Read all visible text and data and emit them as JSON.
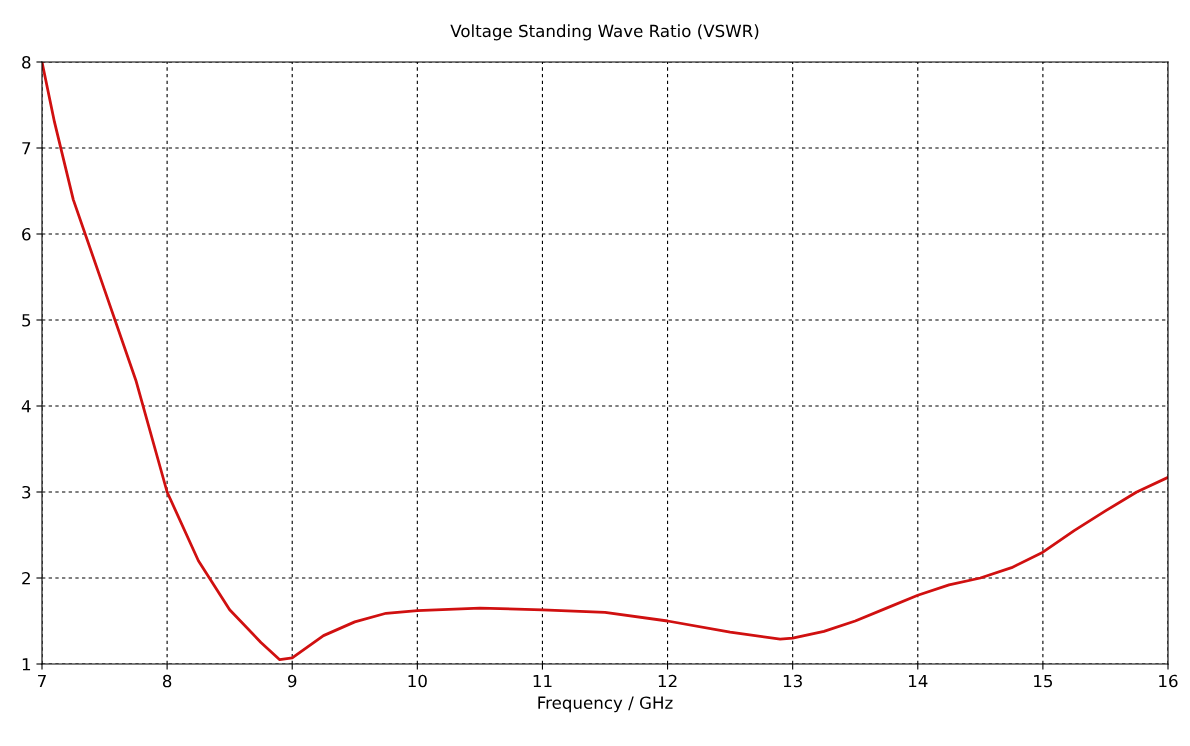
{
  "chart_data": {
    "type": "line",
    "title": "Voltage Standing Wave Ratio (VSWR)",
    "xlabel": "Frequency / GHz",
    "x": [
      7,
      7.1,
      7.25,
      7.5,
      7.75,
      8,
      8.25,
      8.5,
      8.75,
      8.9,
      9,
      9.25,
      9.5,
      9.75,
      10,
      10.5,
      11,
      11.5,
      12,
      12.5,
      12.9,
      13,
      13.25,
      13.5,
      13.75,
      14,
      14.25,
      14.5,
      14.75,
      15,
      15.25,
      15.5,
      15.75,
      16
    ],
    "series": [
      {
        "color": "#d01010",
        "values": [
          8,
          7.3,
          6.4,
          5.35,
          4.3,
          3.0,
          2.2,
          1.63,
          1.25,
          1.05,
          1.07,
          1.33,
          1.49,
          1.59,
          1.62,
          1.65,
          1.63,
          1.6,
          1.5,
          1.37,
          1.29,
          1.3,
          1.38,
          1.5,
          1.65,
          1.8,
          1.92,
          2.0,
          2.12,
          2.3,
          2.55,
          2.78,
          3.0,
          3.17
        ]
      }
    ],
    "xlim": [
      7,
      16
    ],
    "xticks": [
      7,
      8,
      9,
      10,
      11,
      12,
      13,
      14,
      15,
      16
    ],
    "ylim": [
      1,
      8
    ],
    "yticks": [
      1,
      2,
      3,
      4,
      5,
      6,
      7,
      8
    ],
    "grid": true,
    "line_style": "solid"
  }
}
